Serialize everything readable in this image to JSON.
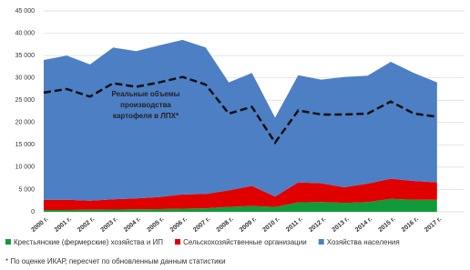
{
  "chart_data": {
    "type": "stacked_area",
    "categories": [
      "2000 г.",
      "2001 г.",
      "2002 г.",
      "2003 г.",
      "2004 г.",
      "2005 г.",
      "2006 г.",
      "2007 г.",
      "2008 г.",
      "2009 г.",
      "2010 г.",
      "2011 г.",
      "2012 г.",
      "2013 г.",
      "2014 г.",
      "2015 г.",
      "2016 г.",
      "2017 г."
    ],
    "series": [
      {
        "name": "Крестьянские (фермерские) хозяйства и ИП",
        "color": "#119a3a",
        "values": [
          400,
          400,
          450,
          500,
          550,
          600,
          700,
          800,
          1100,
          1300,
          1100,
          2100,
          2200,
          2000,
          2200,
          2900,
          2700,
          2700
        ]
      },
      {
        "name": "Сельскохозяйственные организации",
        "color": "#e00000",
        "values": [
          2300,
          2300,
          2050,
          2300,
          2450,
          2700,
          3200,
          3200,
          3700,
          4500,
          2300,
          4500,
          4200,
          3500,
          4100,
          4500,
          4200,
          3900
        ]
      },
      {
        "name": "Хозяйства населения",
        "color": "#4d7fc4",
        "values": [
          31300,
          32300,
          30500,
          34000,
          33000,
          34000,
          34600,
          32800,
          24200,
          25300,
          17700,
          24000,
          23200,
          24700,
          24200,
          26200,
          24200,
          22400
        ]
      }
    ],
    "line": {
      "values": [
        26700,
        27500,
        25800,
        28800,
        28000,
        29000,
        30200,
        28500,
        22000,
        23500,
        15500,
        22700,
        21800,
        21800,
        22000,
        24700,
        22000,
        21300
      ],
      "color": "#111111"
    },
    "annotation": [
      "Реальные объемы",
      "производства",
      "картофеля в ЛПХ*"
    ],
    "footnote": "* По оценке ИКАР, пересчет по обновленным данным статистики",
    "ylim": [
      0,
      45000
    ],
    "yticks": [
      0,
      {
        "value": 5000,
        "label": "5 000"
      },
      {
        "value": 10000,
        "label": "10 000"
      },
      {
        "value": 15000,
        "label": "15 000"
      },
      {
        "value": 20000,
        "label": "20 000"
      },
      {
        "value": 25000,
        "label": "25 000"
      },
      {
        "value": 30000,
        "label": "30 000"
      },
      {
        "value": 35000,
        "label": "35 000"
      },
      {
        "value": 40000,
        "label": "40 000"
      },
      {
        "value": 45000,
        "label": "45 000"
      }
    ],
    "grid": true
  }
}
